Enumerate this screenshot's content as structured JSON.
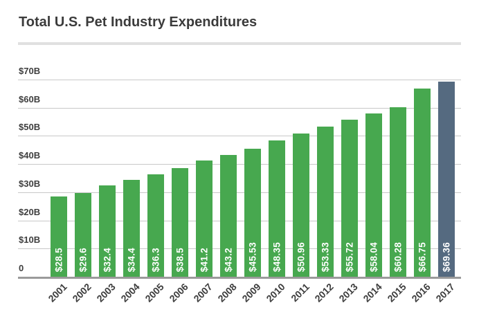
{
  "title": "Total U.S. Pet Industry Expenditures",
  "colors": {
    "bar": "#47A84F",
    "highlight": "#556A80",
    "gridline": "#C8C8C8",
    "baseline": "#9A9A9A",
    "divider": "#E0E0E0",
    "title_text": "#3B3B3B",
    "tick_text": "#3E3E3E",
    "bar_label_text": "#FFFFFF"
  },
  "chart_data": {
    "type": "bar",
    "title": "Total U.S. Pet Industry Expenditures",
    "categories": [
      "2001",
      "2002",
      "2003",
      "2004",
      "2005",
      "2006",
      "2007",
      "2008",
      "2009",
      "2010",
      "2011",
      "2012",
      "2013",
      "2014",
      "2015",
      "2016",
      "2017"
    ],
    "values": [
      28.5,
      29.6,
      32.4,
      34.4,
      36.3,
      38.5,
      41.2,
      43.2,
      45.53,
      48.35,
      50.96,
      53.33,
      55.72,
      58.04,
      60.28,
      66.75,
      69.36
    ],
    "bar_labels": [
      "$28.5",
      "$29.6",
      "$32.4",
      "$34.4",
      "$36.3",
      "$38.5",
      "$41.2",
      "$43.2",
      "$45.53",
      "$48.35",
      "$50.96",
      "$53.33",
      "$55.72",
      "$58.04",
      "$60.28",
      "$66.75",
      "$69.36"
    ],
    "highlight_category": "2017",
    "xlabel": "",
    "ylabel": "",
    "ylim": [
      0,
      70
    ],
    "yticks": [
      {
        "value": 0,
        "label": "0"
      },
      {
        "value": 10,
        "label": "$10B"
      },
      {
        "value": 20,
        "label": "$20B"
      },
      {
        "value": 30,
        "label": "$30B"
      },
      {
        "value": 40,
        "label": "$40B"
      },
      {
        "value": 50,
        "label": "$50B"
      },
      {
        "value": 60,
        "label": "$60B"
      },
      {
        "value": 70,
        "label": "$70B"
      }
    ],
    "grid": "horizontal",
    "legend": "none",
    "value_labels": "inside-bottom-rotated-90",
    "x_tick_rotation": -45
  }
}
